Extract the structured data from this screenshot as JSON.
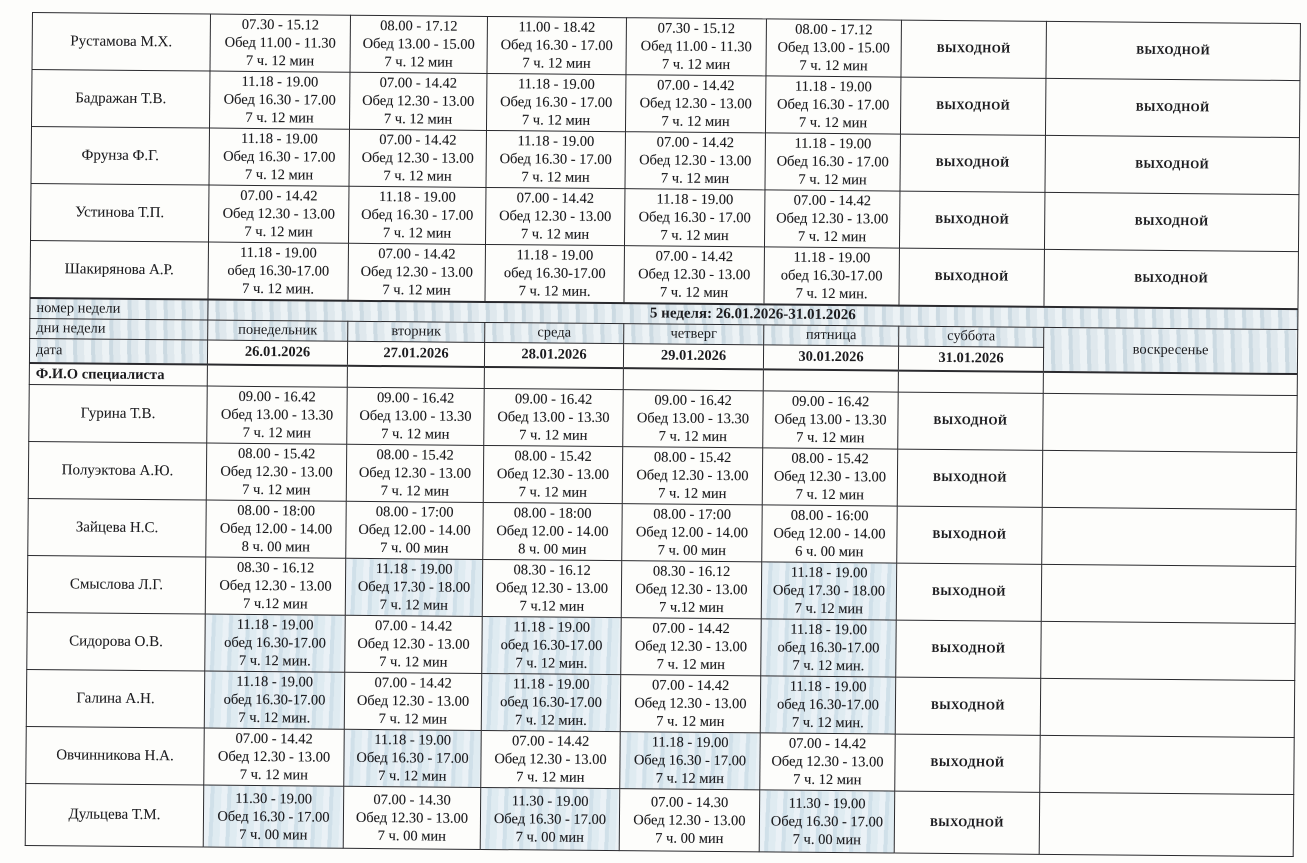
{
  "labels": {
    "day_off": "выходной",
    "week_number": "номер недели",
    "week_days": "дни недели",
    "date": "дата",
    "fio": "Ф.И.О специалиста",
    "week_value": "5 неделя: 26.01.2026-31.01.2026"
  },
  "colors": {
    "highlight_cell": "#d8e6ee",
    "header_band": "#d9e4ea",
    "grid_line": "#2a2a2e",
    "page_background": "#fdfdfb"
  },
  "days": [
    "понедельник",
    "вторник",
    "среда",
    "четверг",
    "пятница",
    "суббота",
    "воскресенье"
  ],
  "dates": [
    "26.01.2026",
    "27.01.2026",
    "28.01.2026",
    "29.01.2026",
    "30.01.2026",
    "31.01.2026"
  ],
  "previous_week_rows": [
    {
      "name": "Рустамова М.Х.",
      "cells": [
        {
          "t": [
            "07.30 - 15.12",
            "Обед 11.00 - 11.30",
            "7 ч. 12 мин"
          ]
        },
        {
          "t": [
            "08.00 - 17.12",
            "Обед 13.00 - 15.00",
            "7 ч. 12 мин"
          ]
        },
        {
          "t": [
            "11.00 - 18.42",
            "Обед 16.30 - 17.00",
            "7 ч. 12 мин"
          ]
        },
        {
          "t": [
            "07.30 - 15.12",
            "Обед 11.00 - 11.30",
            "7 ч. 12 мин"
          ]
        },
        {
          "t": [
            "08.00 - 17.12",
            "Обед 13.00 - 15.00",
            "7 ч. 12 мин"
          ]
        },
        {
          "off": true
        },
        {
          "off": true
        }
      ]
    },
    {
      "name": "Бадражан Т.В.",
      "cells": [
        {
          "t": [
            "11.18 - 19.00",
            "Обед 16.30 - 17.00",
            "7 ч. 12 мин"
          ]
        },
        {
          "t": [
            "07.00 - 14.42",
            "Обед 12.30 - 13.00",
            "7 ч. 12 мин"
          ]
        },
        {
          "t": [
            "11.18 - 19.00",
            "Обед 16.30 - 17.00",
            "7 ч. 12 мин"
          ]
        },
        {
          "t": [
            "07.00 - 14.42",
            "Обед 12.30 - 13.00",
            "7 ч. 12 мин"
          ]
        },
        {
          "t": [
            "11.18 - 19.00",
            "Обед 16.30 - 17.00",
            "7 ч. 12 мин"
          ]
        },
        {
          "off": true
        },
        {
          "off": true
        }
      ]
    },
    {
      "name": "Фрунза Ф.Г.",
      "cells": [
        {
          "t": [
            "11.18 - 19.00",
            "Обед 16.30 - 17.00",
            "7 ч. 12 мин"
          ]
        },
        {
          "t": [
            "07.00 - 14.42",
            "Обед 12.30 - 13.00",
            "7 ч. 12 мин"
          ]
        },
        {
          "t": [
            "11.18 - 19.00",
            "Обед 16.30 - 17.00",
            "7 ч. 12 мин"
          ]
        },
        {
          "t": [
            "07.00 - 14.42",
            "Обед 12.30 - 13.00",
            "7 ч. 12 мин"
          ]
        },
        {
          "t": [
            "11.18 - 19.00",
            "Обед 16.30 - 17.00",
            "7 ч. 12 мин"
          ]
        },
        {
          "off": true
        },
        {
          "off": true
        }
      ]
    },
    {
      "name": "Устинова Т.П.",
      "cells": [
        {
          "t": [
            "07.00 - 14.42",
            "Обед 12.30 - 13.00",
            "7 ч. 12 мин"
          ]
        },
        {
          "t": [
            "11.18 - 19.00",
            "Обед 16.30 - 17.00",
            "7 ч. 12 мин"
          ]
        },
        {
          "t": [
            "07.00 - 14.42",
            "Обед 12.30 - 13.00",
            "7 ч. 12 мин"
          ]
        },
        {
          "t": [
            "11.18 - 19.00",
            "Обед 16.30 - 17.00",
            "7 ч. 12 мин"
          ]
        },
        {
          "t": [
            "07.00 - 14.42",
            "Обед 12.30 - 13.00",
            "7 ч. 12 мин"
          ]
        },
        {
          "off": true
        },
        {
          "off": true
        }
      ]
    },
    {
      "name": "Шакирянова А.Р.",
      "cells": [
        {
          "t": [
            "11.18 - 19.00",
            "обед 16.30-17.00",
            "7 ч. 12 мин."
          ]
        },
        {
          "t": [
            "07.00 - 14.42",
            "Обед 12.30 - 13.00",
            "7 ч. 12 мин"
          ]
        },
        {
          "t": [
            "11.18 - 19.00",
            "обед 16.30-17.00",
            "7 ч. 12 мин."
          ]
        },
        {
          "t": [
            "07.00 - 14.42",
            "Обед 12.30 - 13.00",
            "7 ч. 12 мин"
          ]
        },
        {
          "t": [
            "11.18 - 19.00",
            "обед 16.30-17.00",
            "7 ч. 12 мин."
          ]
        },
        {
          "off": true
        },
        {
          "off": true
        }
      ]
    }
  ],
  "current_week_rows": [
    {
      "name": "Гурина Т.В.",
      "cells": [
        {
          "t": [
            "09.00 - 16.42",
            "Обед 13.00 - 13.30",
            "7 ч. 12 мин"
          ]
        },
        {
          "t": [
            "09.00 - 16.42",
            "Обед 13.00 - 13.30",
            "7 ч. 12 мин"
          ]
        },
        {
          "t": [
            "09.00 - 16.42",
            "Обед 13.00 - 13.30",
            "7 ч. 12 мин"
          ]
        },
        {
          "t": [
            "09.00 - 16.42",
            "Обед 13.00 - 13.30",
            "7 ч. 12 мин"
          ]
        },
        {
          "t": [
            "09.00 - 16.42",
            "Обед 13.00 - 13.30",
            "7 ч. 12 мин"
          ]
        },
        {
          "off": true
        },
        {}
      ]
    },
    {
      "name": "Полуэктова А.Ю.",
      "cells": [
        {
          "t": [
            "08.00 - 15.42",
            "Обед 12.30 - 13.00",
            "7 ч. 12 мин"
          ]
        },
        {
          "t": [
            "08.00 - 15.42",
            "Обед 12.30 - 13.00",
            "7 ч. 12 мин"
          ]
        },
        {
          "t": [
            "08.00 - 15.42",
            "Обед 12.30 - 13.00",
            "7 ч. 12 мин"
          ]
        },
        {
          "t": [
            "08.00 - 15.42",
            "Обед 12.30 - 13.00",
            "7 ч. 12 мин"
          ]
        },
        {
          "t": [
            "08.00 - 15.42",
            "Обед 12.30 - 13.00",
            "7 ч. 12 мин"
          ]
        },
        {
          "off": true
        },
        {}
      ]
    },
    {
      "name": "Зайцева Н.С.",
      "cells": [
        {
          "t": [
            "08.00 - 18:00",
            "Обед 12.00 - 14.00",
            "8 ч. 00 мин"
          ]
        },
        {
          "t": [
            "08.00 - 17:00",
            "Обед 12.00 - 14.00",
            "7 ч. 00 мин"
          ]
        },
        {
          "t": [
            "08.00 - 18:00",
            "Обед 12.00 - 14.00",
            "8 ч. 00 мин"
          ]
        },
        {
          "t": [
            "08.00 - 17:00",
            "Обед 12.00 - 14.00",
            "7 ч. 00 мин"
          ]
        },
        {
          "t": [
            "08.00 - 16:00",
            "Обед 12.00 - 14.00",
            "6 ч. 00 мин"
          ]
        },
        {
          "off": true
        },
        {}
      ]
    },
    {
      "name": "Смыслова Л.Г.",
      "cells": [
        {
          "t": [
            "08.30 - 16.12",
            "Обед 12.30 - 13.00",
            "7 ч.12 мин"
          ]
        },
        {
          "t": [
            "11.18 - 19.00",
            "Обед 17.30 - 18.00",
            "7 ч. 12 мин"
          ],
          "hl": true
        },
        {
          "t": [
            "08.30 - 16.12",
            "Обед 12.30 - 13.00",
            "7 ч.12 мин"
          ]
        },
        {
          "t": [
            "08.30 - 16.12",
            "Обед 12.30 - 13.00",
            "7 ч.12 мин"
          ]
        },
        {
          "t": [
            "11.18 - 19.00",
            "Обед 17.30 - 18.00",
            "7 ч. 12 мин"
          ],
          "hl": true
        },
        {
          "off": true
        },
        {}
      ]
    },
    {
      "name": "Сидорова О.В.",
      "cells": [
        {
          "t": [
            "11.18 - 19.00",
            "обед 16.30-17.00",
            "7 ч. 12 мин."
          ],
          "hl": true
        },
        {
          "t": [
            "07.00 - 14.42",
            "Обед 12.30 - 13.00",
            "7 ч. 12 мин"
          ]
        },
        {
          "t": [
            "11.18 - 19.00",
            "обед 16.30-17.00",
            "7 ч. 12 мин."
          ],
          "hl": true
        },
        {
          "t": [
            "07.00 - 14.42",
            "Обед 12.30 - 13.00",
            "7 ч. 12 мин"
          ]
        },
        {
          "t": [
            "11.18 - 19.00",
            "обед 16.30-17.00",
            "7 ч. 12 мин."
          ],
          "hl": true
        },
        {
          "off": true
        },
        {}
      ]
    },
    {
      "name": "Галина А.Н.",
      "cells": [
        {
          "t": [
            "11.18 - 19.00",
            "обед 16.30-17.00",
            "7 ч. 12 мин."
          ],
          "hl": true
        },
        {
          "t": [
            "07.00 - 14.42",
            "Обед 12.30 - 13.00",
            "7 ч. 12 мин"
          ]
        },
        {
          "t": [
            "11.18 - 19.00",
            "обед 16.30-17.00",
            "7 ч. 12 мин."
          ],
          "hl": true
        },
        {
          "t": [
            "07.00 - 14.42",
            "Обед 12.30 - 13.00",
            "7 ч. 12 мин"
          ]
        },
        {
          "t": [
            "11.18 - 19.00",
            "обед 16.30-17.00",
            "7 ч. 12 мин."
          ],
          "hl": true
        },
        {
          "off": true
        },
        {}
      ]
    },
    {
      "name": "Овчинникова Н.А.",
      "cells": [
        {
          "t": [
            "07.00 - 14.42",
            "Обед 12.30 - 13.00",
            "7 ч. 12 мин"
          ]
        },
        {
          "t": [
            "11.18 - 19.00",
            "Обед 16.30 - 17.00",
            "7 ч. 12 мин"
          ],
          "hl": true
        },
        {
          "t": [
            "07.00 - 14.42",
            "Обед 12.30 - 13.00",
            "7 ч. 12 мин"
          ]
        },
        {
          "t": [
            "11.18 - 19.00",
            "Обед 16.30 - 17.00",
            "7 ч. 12 мин"
          ],
          "hl": true
        },
        {
          "t": [
            "07.00 - 14.42",
            "Обед 12.30 - 13.00",
            "7 ч. 12 мин"
          ]
        },
        {
          "off": true
        },
        {}
      ]
    },
    {
      "name": "Дульцева Т.М.",
      "cells": [
        {
          "t": [
            "11.30 - 19.00",
            "Обед 16.30 - 17.00",
            "7 ч. 00 мин"
          ],
          "hl": true
        },
        {
          "t": [
            "07.00 - 14.30",
            "Обед 12.30 - 13.00",
            "7 ч. 00 мин"
          ]
        },
        {
          "t": [
            "11.30 - 19.00",
            "Обед 16.30 - 17.00",
            "7 ч. 00 мин"
          ],
          "hl": true
        },
        {
          "t": [
            "07.00 - 14.30",
            "Обед 12.30 - 13.00",
            "7 ч. 00 мин"
          ]
        },
        {
          "t": [
            "11.30 - 19.00",
            "Обед 16.30 - 17.00",
            "7 ч. 00 мин"
          ],
          "hl": true
        },
        {
          "off": true
        },
        {}
      ]
    }
  ]
}
